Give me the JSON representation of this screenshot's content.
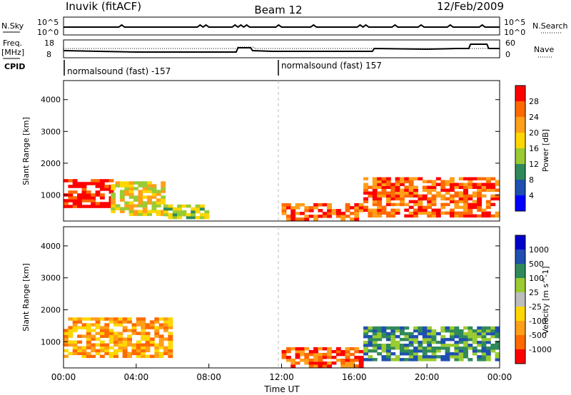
{
  "header": {
    "station": "Inuvik (fitACF)",
    "beam": "Beam 12",
    "date": "12/Feb/2009"
  },
  "top_panels": {
    "nsky_label": "N.Sky",
    "nsky_ticks": [
      "10^5",
      "10^0"
    ],
    "nsearch_label": "N.Search",
    "nsearch_ticks": [
      "10^5",
      "10^0"
    ],
    "freq_label_1": "Freq.",
    "freq_label_2": "[MHz]",
    "freq_ticks": [
      "18",
      "8"
    ],
    "nave_label": "Nave",
    "nave_ticks": [
      "60",
      "0"
    ],
    "cpid_label": "CPID",
    "cpid_entries": [
      "normalsound (fast) -157",
      "normalsound (fast) 157"
    ]
  },
  "chart_data": [
    {
      "type": "heatmap",
      "name": "power",
      "xlabel": "",
      "ylabel": "Slant Range [km]",
      "xlim": [
        0,
        24
      ],
      "ylim": [
        180,
        4600
      ],
      "y_ticks": [
        1000,
        2000,
        3000,
        4000
      ],
      "colorbar_label": "Power [dB]",
      "colorbar_ticks": [
        "28",
        "24",
        "20",
        "16",
        "12",
        "8",
        "4"
      ],
      "colors": [
        "#0000ff",
        "#1f4fb0",
        "#2f8a5a",
        "#9acb32",
        "#ffd700",
        "#ff9f1a",
        "#ff6a00",
        "#ff0000"
      ],
      "regions": [
        {
          "t": [
            0.0,
            2.6
          ],
          "r": [
            600,
            1450
          ],
          "level": 7
        },
        {
          "t": [
            2.6,
            5.5
          ],
          "r": [
            350,
            1400
          ],
          "level": 4
        },
        {
          "t": [
            5.5,
            8.0
          ],
          "r": [
            250,
            700
          ],
          "level": 3
        },
        {
          "t": [
            12.0,
            16.5
          ],
          "r": [
            200,
            700
          ],
          "level": 6
        },
        {
          "t": [
            16.5,
            24.0
          ],
          "r": [
            300,
            1500
          ],
          "level": 6
        }
      ]
    },
    {
      "type": "heatmap",
      "name": "velocity",
      "xlabel": "Time UT",
      "ylabel": "Slant Range [km]",
      "xlim": [
        0,
        24
      ],
      "ylim": [
        180,
        4600
      ],
      "y_ticks": [
        1000,
        2000,
        3000,
        4000
      ],
      "x_ticks": [
        "00:00",
        "04:00",
        "08:00",
        "12:00",
        "16:00",
        "20:00",
        "00:00"
      ],
      "colorbar_label": "Velocity [m s^-1]",
      "colorbar_ticks": [
        "1000",
        "500",
        "100",
        "25",
        "-25",
        "-100",
        "-500",
        "-1000"
      ],
      "colors": [
        "#ff0000",
        "#ff6a00",
        "#ff9f1a",
        "#ffd700",
        "#bdbdbd",
        "#9acb32",
        "#2f8a5a",
        "#1f4fb0",
        "#0000cc"
      ],
      "regions": [
        {
          "t": [
            0.0,
            6.0
          ],
          "r": [
            500,
            1700
          ],
          "level": 2
        },
        {
          "t": [
            12.0,
            16.5
          ],
          "r": [
            200,
            800
          ],
          "level": 1
        },
        {
          "t": [
            16.5,
            24.0
          ],
          "r": [
            400,
            1400
          ],
          "level": 6
        }
      ]
    }
  ]
}
